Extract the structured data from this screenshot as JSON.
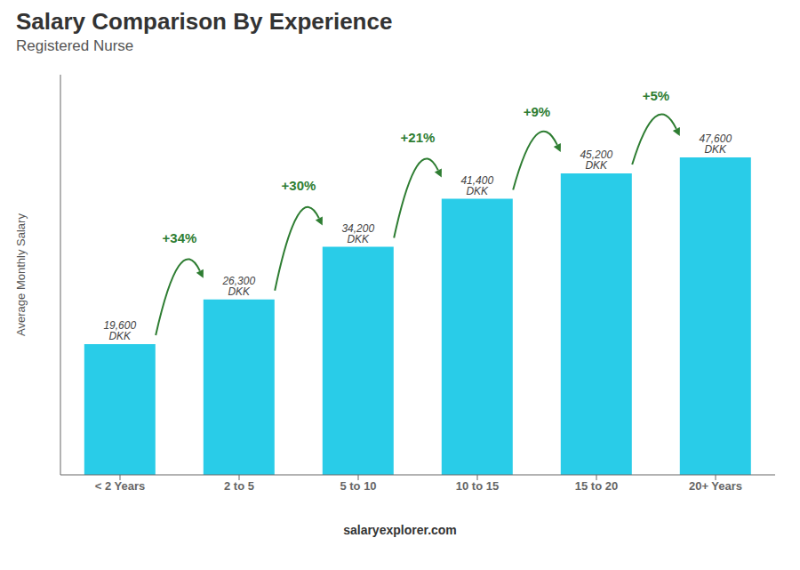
{
  "chart_data": {
    "type": "bar",
    "title": "Salary Comparison By Experience",
    "subtitle": "Registered Nurse",
    "ylabel": "Average Monthly Salary",
    "categories": [
      "< 2 Years",
      "2 to 5",
      "5 to 10",
      "10 to 15",
      "15 to 20",
      "20+ Years"
    ],
    "values": [
      19600,
      26300,
      34200,
      41400,
      45200,
      47600
    ],
    "value_labels": [
      "19,600 DKK",
      "26,300 DKK",
      "34,200 DKK",
      "41,400 DKK",
      "45,200 DKK",
      "47,600 DKK"
    ],
    "data_labels": true,
    "annotations": [
      "+34%",
      "+30%",
      "+21%",
      "+9%",
      "+5%"
    ],
    "color": "#29cce8",
    "ylim": [
      0,
      60000
    ],
    "tick_labels": "x",
    "grid": false,
    "footer": "salaryexplorer.com"
  }
}
